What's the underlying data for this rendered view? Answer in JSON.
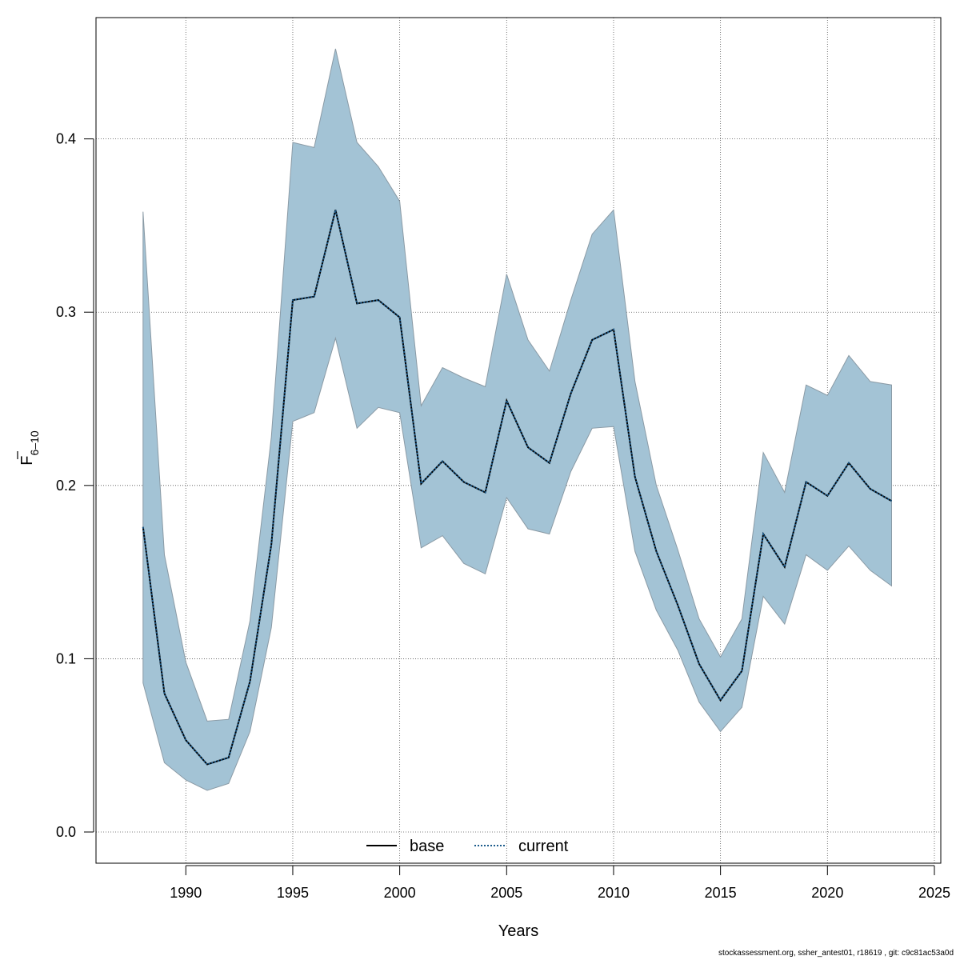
{
  "chart_data": {
    "type": "area",
    "xlabel": "Years",
    "ylabel_main": "F",
    "ylabel_sub": "6–10",
    "xlim": [
      1985.8,
      2025.3
    ],
    "ylim": [
      -0.018,
      0.47
    ],
    "x_ticks": [
      1990,
      1995,
      2000,
      2005,
      2010,
      2015,
      2020,
      2025
    ],
    "y_ticks": [
      0.0,
      0.1,
      0.2,
      0.3,
      0.4
    ],
    "y_tick_labels": [
      "0.0",
      "0.1",
      "0.2",
      "0.3",
      "0.4"
    ],
    "grid": true,
    "legend_position": "bottom",
    "x": [
      1988,
      1989,
      1990,
      1991,
      1992,
      1993,
      1994,
      1995,
      1996,
      1997,
      1998,
      1999,
      2000,
      2001,
      2002,
      2003,
      2004,
      2005,
      2006,
      2007,
      2008,
      2009,
      2010,
      2011,
      2012,
      2013,
      2014,
      2015,
      2016,
      2017,
      2018,
      2019,
      2020,
      2021,
      2022,
      2023
    ],
    "series": [
      {
        "name": "base",
        "color": "#000000",
        "dash": "solid",
        "values": [
          0.176,
          0.08,
          0.053,
          0.039,
          0.043,
          0.087,
          0.166,
          0.307,
          0.309,
          0.359,
          0.305,
          0.307,
          0.297,
          0.201,
          0.214,
          0.202,
          0.196,
          0.249,
          0.222,
          0.213,
          0.253,
          0.284,
          0.29,
          0.205,
          0.162,
          0.131,
          0.097,
          0.076,
          0.093,
          0.172,
          0.153,
          0.202,
          0.194,
          0.213,
          0.198,
          0.191
        ]
      },
      {
        "name": "current",
        "color": "#1c5b8c",
        "dash": "dotted",
        "values": [
          0.176,
          0.08,
          0.053,
          0.039,
          0.043,
          0.087,
          0.166,
          0.307,
          0.309,
          0.359,
          0.305,
          0.307,
          0.297,
          0.201,
          0.214,
          0.202,
          0.196,
          0.249,
          0.222,
          0.213,
          0.253,
          0.284,
          0.29,
          0.205,
          0.162,
          0.131,
          0.097,
          0.076,
          0.093,
          0.172,
          0.153,
          0.202,
          0.194,
          0.213,
          0.198,
          0.191
        ]
      }
    ],
    "band": {
      "color": "#a3c3d5",
      "lower": [
        0.086,
        0.04,
        0.03,
        0.024,
        0.028,
        0.058,
        0.118,
        0.237,
        0.242,
        0.285,
        0.233,
        0.245,
        0.242,
        0.164,
        0.171,
        0.155,
        0.149,
        0.193,
        0.175,
        0.172,
        0.208,
        0.233,
        0.234,
        0.162,
        0.128,
        0.105,
        0.075,
        0.058,
        0.072,
        0.136,
        0.12,
        0.16,
        0.151,
        0.165,
        0.151,
        0.142
      ],
      "upper": [
        0.358,
        0.16,
        0.098,
        0.064,
        0.065,
        0.122,
        0.228,
        0.398,
        0.395,
        0.452,
        0.398,
        0.384,
        0.364,
        0.246,
        0.268,
        0.262,
        0.257,
        0.322,
        0.284,
        0.266,
        0.307,
        0.345,
        0.359,
        0.26,
        0.2,
        0.163,
        0.123,
        0.101,
        0.123,
        0.219,
        0.196,
        0.258,
        0.252,
        0.275,
        0.26,
        0.258
      ]
    }
  },
  "footer": "stockassessment.org, ssher_antest01, r18619 , git: c9c81ac53a0d"
}
